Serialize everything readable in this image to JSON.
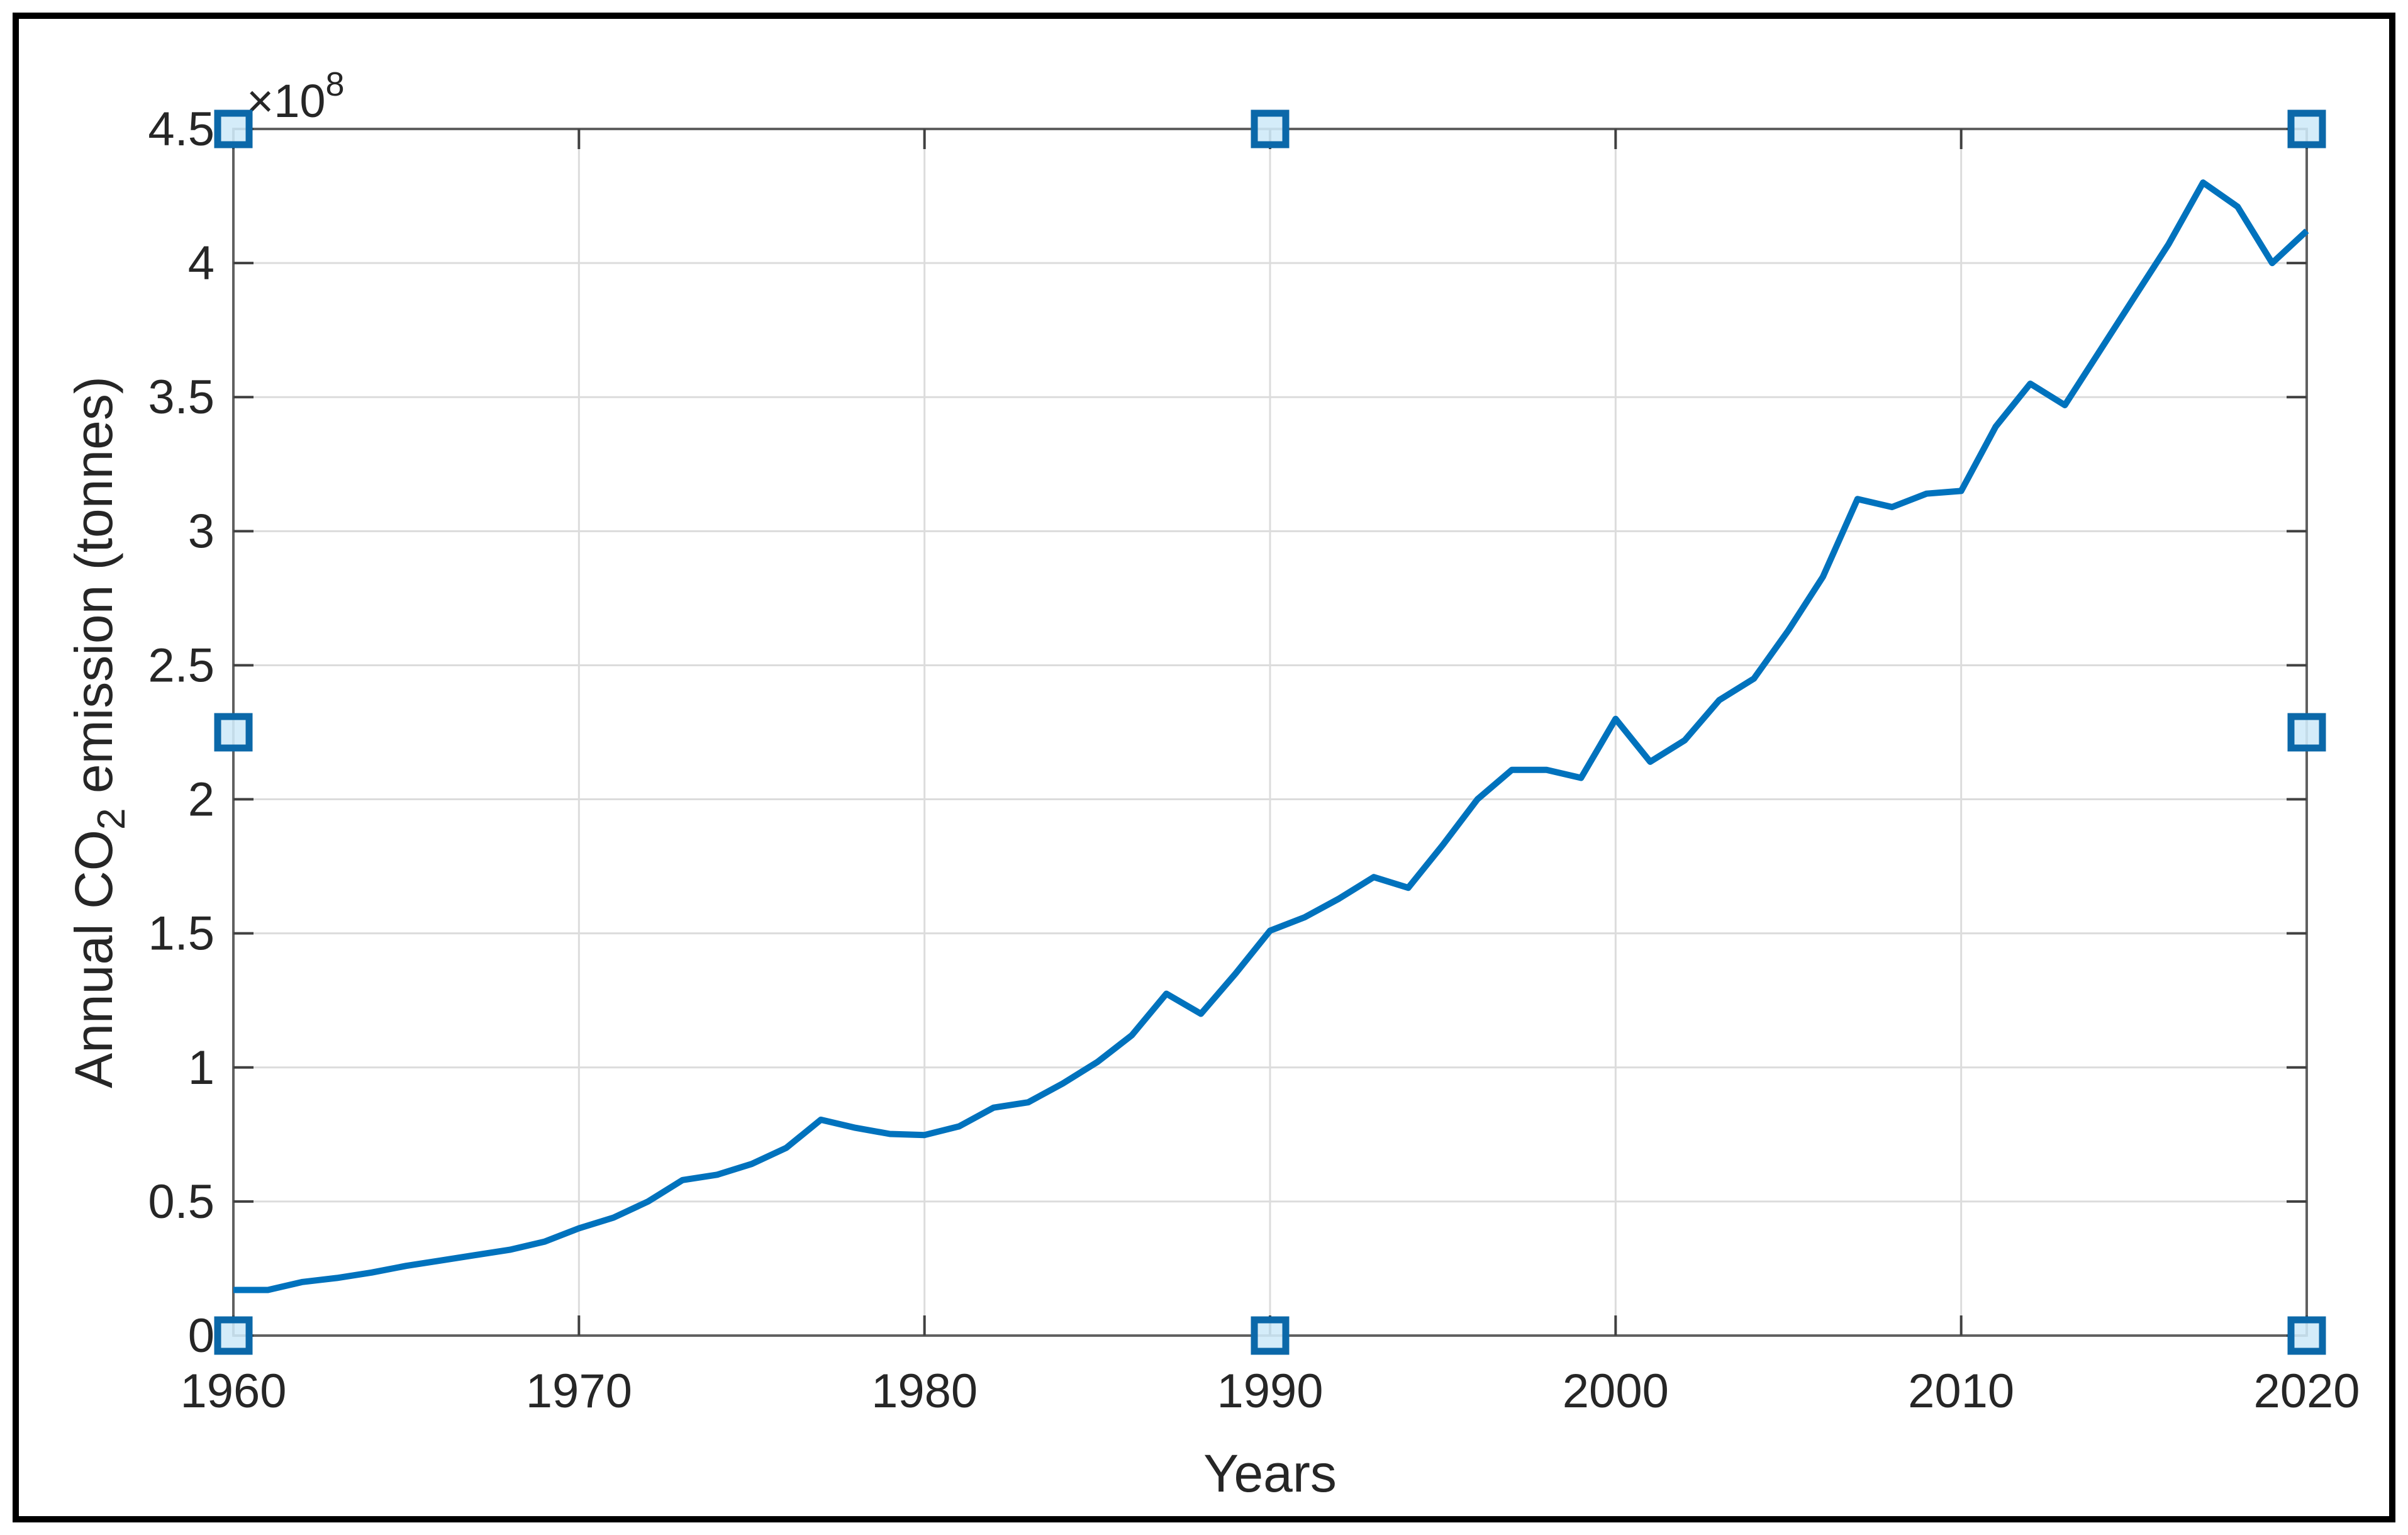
{
  "figure": {
    "background_color": "#ffffff",
    "border_color": "#000000"
  },
  "chart_data": {
    "type": "line",
    "title": "",
    "xlabel": "Years",
    "ylabel": {
      "prefix": "Annual CO",
      "sub": "2",
      "suffix": " emission (tonnes)"
    },
    "y_axis_exponent": {
      "base": "×10",
      "exp": "8"
    },
    "y_unit_scale": "1e8 tonnes",
    "xlim": [
      1960,
      2020
    ],
    "ylim": [
      0,
      4.5
    ],
    "grid": true,
    "legend": null,
    "x": [
      1960,
      1961,
      1962,
      1963,
      1964,
      1965,
      1966,
      1967,
      1968,
      1969,
      1970,
      1971,
      1972,
      1973,
      1974,
      1975,
      1976,
      1977,
      1978,
      1979,
      1980,
      1981,
      1982,
      1983,
      1984,
      1985,
      1986,
      1987,
      1988,
      1989,
      1990,
      1991,
      1992,
      1993,
      1994,
      1995,
      1996,
      1997,
      1998,
      1999,
      2000,
      2001,
      2002,
      2003,
      2004,
      2005,
      2006,
      2007,
      2008,
      2009,
      2010,
      2011,
      2012,
      2013,
      2014,
      2015,
      2016,
      2017,
      2018,
      2019,
      2020
    ],
    "series": [
      {
        "name": "Annual CO2 emission",
        "values": [
          0.17,
          0.17,
          0.2,
          0.215,
          0.235,
          0.26,
          0.28,
          0.3,
          0.32,
          0.35,
          0.4,
          0.44,
          0.5,
          0.58,
          0.6,
          0.64,
          0.7,
          0.805,
          0.775,
          0.752,
          0.748,
          0.78,
          0.85,
          0.87,
          0.94,
          1.02,
          1.12,
          1.275,
          1.2,
          1.35,
          1.51,
          1.56,
          1.63,
          1.71,
          1.67,
          1.83,
          2.0,
          2.11,
          2.11,
          2.08,
          2.3,
          2.14,
          2.22,
          2.37,
          2.45,
          2.63,
          2.83,
          3.12,
          3.09,
          3.14,
          3.15,
          3.39,
          3.55,
          3.47,
          3.67,
          3.87,
          4.07,
          4.3,
          4.21,
          4.0,
          4.12
        ]
      }
    ],
    "x_ticks": {
      "values": [
        1960,
        1970,
        1980,
        1990,
        2000,
        2010,
        2020
      ],
      "labels": [
        "1960",
        "1970",
        "1980",
        "1990",
        "2000",
        "2010",
        "2020"
      ]
    },
    "y_ticks": {
      "values": [
        0,
        0.5,
        1,
        1.5,
        2,
        2.5,
        3,
        3.5,
        4,
        4.5
      ],
      "labels": [
        "0",
        "0.5",
        "1",
        "1.5",
        "2",
        "2.5",
        "3",
        "3.5",
        "4",
        "4.5"
      ]
    },
    "colors": {
      "line": "#0072BD",
      "grid": "#dcdcdc",
      "axes_box": "#606060",
      "tick_mark": "#404040",
      "text": "#262626"
    },
    "line_width": 10
  },
  "selection_handles": {
    "positions": [
      "top-left",
      "top-center",
      "top-right",
      "middle-left",
      "middle-right",
      "bottom-left",
      "bottom-center",
      "bottom-right"
    ],
    "fill": "#cfeaf8",
    "border": "#0b68a9"
  }
}
